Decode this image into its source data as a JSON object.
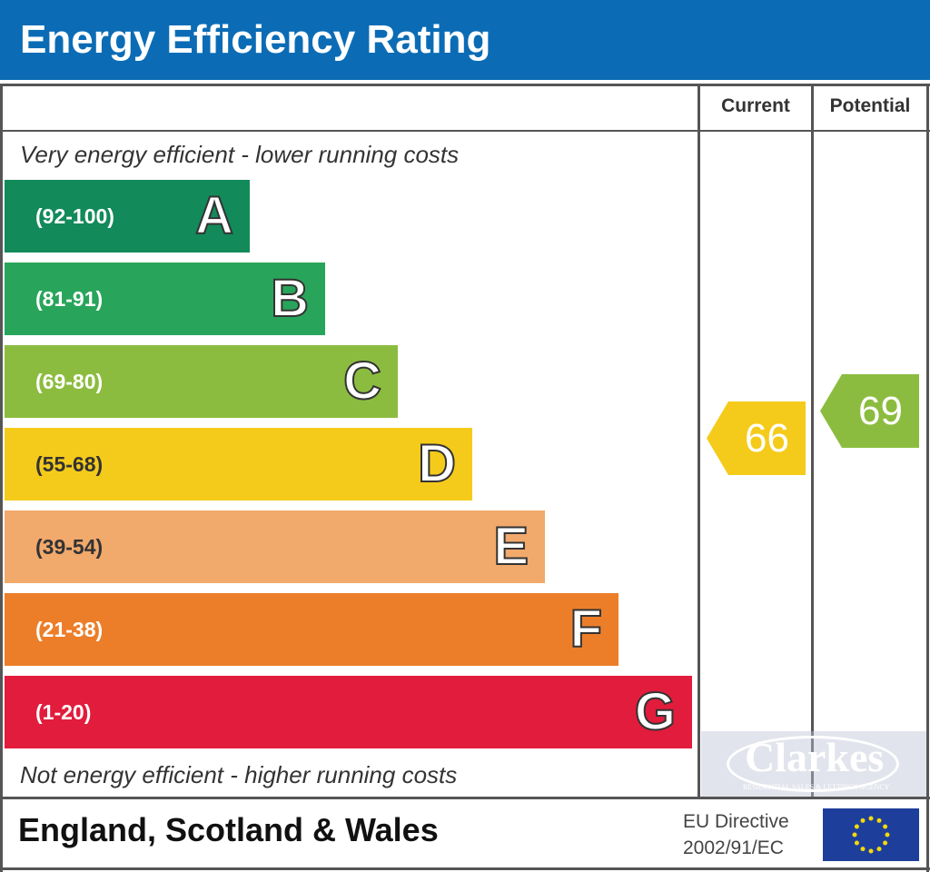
{
  "title": "Energy Efficiency Rating",
  "chart_data": {
    "type": "table",
    "columns": [
      "Current",
      "Potential"
    ],
    "top_note": "Very energy efficient - lower running costs",
    "bottom_note": "Not energy efficient - higher running costs",
    "bands": [
      {
        "letter": "A",
        "range": "(92-100)",
        "color": "#128a5a"
      },
      {
        "letter": "B",
        "range": "(81-91)",
        "color": "#29a55b"
      },
      {
        "letter": "C",
        "range": "(69-80)",
        "color": "#8cbc3f"
      },
      {
        "letter": "D",
        "range": "(55-68)",
        "color": "#f5cb1b"
      },
      {
        "letter": "E",
        "range": "(39-54)",
        "color": "#f1a96c"
      },
      {
        "letter": "F",
        "range": "(21-38)",
        "color": "#ec7e2a"
      },
      {
        "letter": "G",
        "range": "(1-20)",
        "color": "#e21c3c"
      }
    ],
    "current": {
      "value": "66",
      "band": "D",
      "color": "#f5cb1b"
    },
    "potential": {
      "value": "69",
      "band": "C",
      "color": "#8cbc3f"
    }
  },
  "footer": {
    "region": "England, Scotland & Wales",
    "directive_line1": "EU Directive",
    "directive_line2": "2002/91/EC"
  },
  "watermark": {
    "name": "Clarkes",
    "tagline": "RESIDENTIAL SALES & LETTINGS AGENCY"
  }
}
